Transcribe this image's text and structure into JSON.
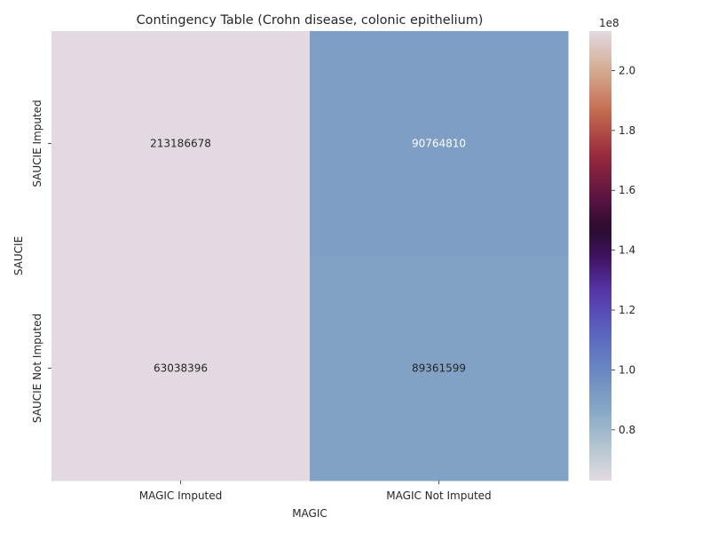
{
  "chart_data": {
    "type": "heatmap",
    "title": "Contingency Table (Crohn disease, colonic epithelium)",
    "xlabel": "MAGIC",
    "ylabel": "SAUCIE",
    "x_categories": [
      "MAGIC Imputed",
      "MAGIC Not Imputed"
    ],
    "y_categories": [
      "SAUCIE Imputed",
      "SAUCIE Not Imputed"
    ],
    "values": [
      [
        213186678,
        90764810
      ],
      [
        63038396,
        89361599
      ]
    ],
    "colormap": "twilight",
    "colorbar": {
      "range": [
        63038396,
        213186678
      ],
      "ticks": [
        0.8,
        1.0,
        1.2,
        1.4,
        1.6,
        1.8,
        2.0
      ],
      "tick_labels": [
        "0.8",
        "1.0",
        "1.2",
        "1.4",
        "1.6",
        "1.8",
        "2.0"
      ],
      "multiplier": "1e8"
    },
    "annotation_colors": {
      "light_bg": "#262626",
      "dark_bg": "#ffffff"
    }
  }
}
